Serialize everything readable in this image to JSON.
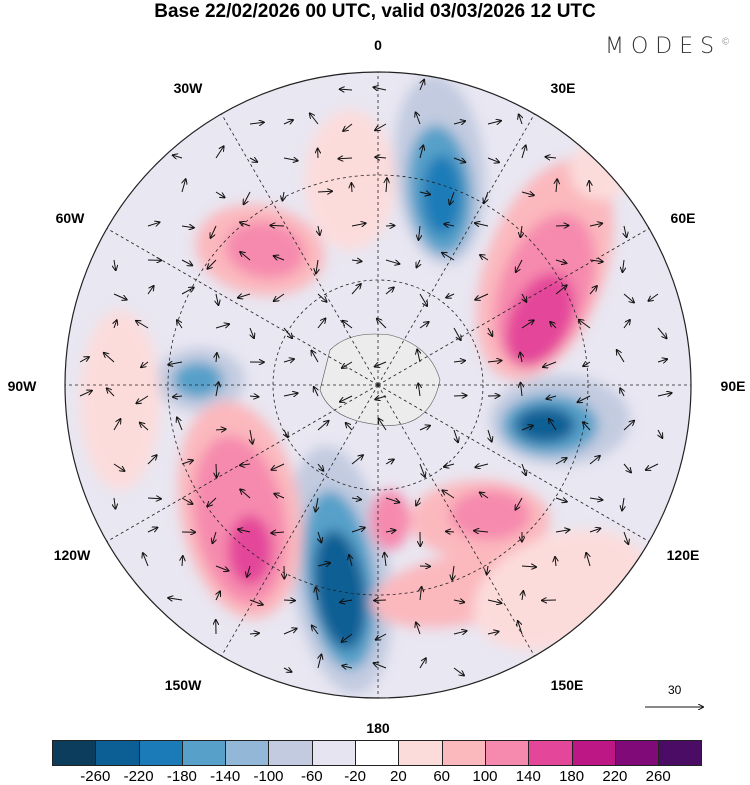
{
  "title": "Base 22/02/2026 00 UTC, valid 03/03/2026 12 UTC",
  "logo": "MODES",
  "logo_mark": "©",
  "longitude_labels": [
    "0",
    "30E",
    "60E",
    "90E",
    "120E",
    "150E",
    "180",
    "150W",
    "120W",
    "90W",
    "60W",
    "30W"
  ],
  "vector_scale_label": "30",
  "colorbar": {
    "colors": [
      "#0d3d5c",
      "#0b5f94",
      "#1b7bb8",
      "#56a0c9",
      "#93b7d7",
      "#c2cbe0",
      "#e6e4f0",
      "#ffffff",
      "#fcdcdb",
      "#fbb8bd",
      "#f68aae",
      "#e4479a",
      "#bd1785",
      "#800a77",
      "#4b0c66"
    ],
    "ticks": [
      "-260",
      "-220",
      "-180",
      "-140",
      "-100",
      "-60",
      "-20",
      "20",
      "60",
      "100",
      "140",
      "180",
      "220",
      "260"
    ]
  }
}
